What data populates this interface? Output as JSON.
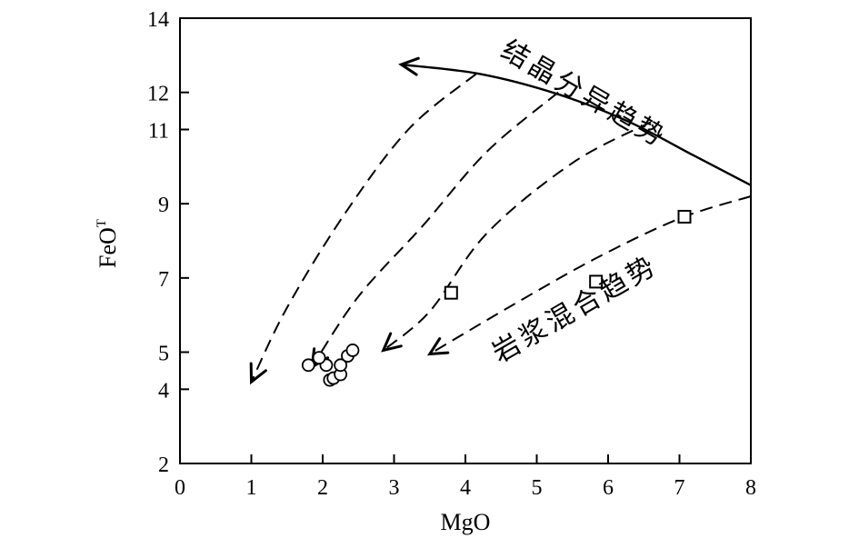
{
  "chart_data": {
    "type": "scatter",
    "title": "",
    "xlabel": "MgO",
    "ylabel": "FeO",
    "ylabel_superscript": "T",
    "xlim": [
      0,
      8
    ],
    "ylim": [
      2,
      14
    ],
    "x_ticks": [
      0,
      1,
      2,
      3,
      4,
      5,
      6,
      7,
      8
    ],
    "y_ticks": [
      2,
      4,
      5,
      7,
      9,
      11,
      12,
      14
    ],
    "grid": false,
    "series": [
      {
        "name": "circles",
        "marker": "circle",
        "points": [
          [
            1.8,
            4.65
          ],
          [
            2.05,
            4.65
          ],
          [
            1.95,
            4.85
          ],
          [
            2.1,
            4.25
          ],
          [
            2.15,
            4.3
          ],
          [
            2.25,
            4.4
          ],
          [
            2.25,
            4.65
          ],
          [
            2.35,
            4.9
          ],
          [
            2.42,
            5.05
          ]
        ]
      },
      {
        "name": "squares",
        "marker": "square",
        "points": [
          [
            3.8,
            6.6
          ],
          [
            5.83,
            6.9
          ],
          [
            7.07,
            8.65
          ]
        ]
      }
    ],
    "curves": [
      {
        "name": "fractional-crystallization-trend",
        "style": "solid",
        "arrow_at": "start",
        "points": [
          [
            3.1,
            12.75
          ],
          [
            4.2,
            12.5
          ],
          [
            5.3,
            11.95
          ],
          [
            6.3,
            11.2
          ],
          [
            7.2,
            10.3
          ],
          [
            8.0,
            9.5
          ]
        ]
      },
      {
        "name": "dashed-curve-1",
        "style": "dashed",
        "arrow_at": "end",
        "points": [
          [
            4.15,
            12.5
          ],
          [
            3.2,
            11.0
          ],
          [
            2.3,
            8.7
          ],
          [
            1.5,
            6.2
          ],
          [
            1.0,
            4.2
          ]
        ]
      },
      {
        "name": "dashed-curve-2",
        "style": "dashed",
        "arrow_at": "end",
        "points": [
          [
            5.3,
            12.0
          ],
          [
            4.3,
            10.4
          ],
          [
            3.4,
            8.4
          ],
          [
            2.5,
            6.5
          ],
          [
            1.85,
            4.6
          ]
        ]
      },
      {
        "name": "dashed-curve-3",
        "style": "dashed",
        "arrow_at": "end",
        "points": [
          [
            6.6,
            11.2
          ],
          [
            5.5,
            10.1
          ],
          [
            4.3,
            8.2
          ],
          [
            3.5,
            6.1
          ],
          [
            2.85,
            5.05
          ]
        ]
      },
      {
        "name": "dashed-curve-4",
        "style": "dashed",
        "arrow_at": "end",
        "points": [
          [
            8.0,
            9.2
          ],
          [
            7.0,
            8.6
          ],
          [
            5.8,
            7.5
          ],
          [
            4.6,
            6.2
          ],
          [
            3.5,
            4.95
          ]
        ]
      }
    ],
    "annotations": [
      {
        "name": "fractional-crystallization-label",
        "text": "结晶分异趋势",
        "x": 5.6,
        "y": 11.75
      },
      {
        "name": "magma-mixing-label",
        "text": "岩浆混合趋势",
        "x": 5.6,
        "y": 5.95
      }
    ]
  }
}
